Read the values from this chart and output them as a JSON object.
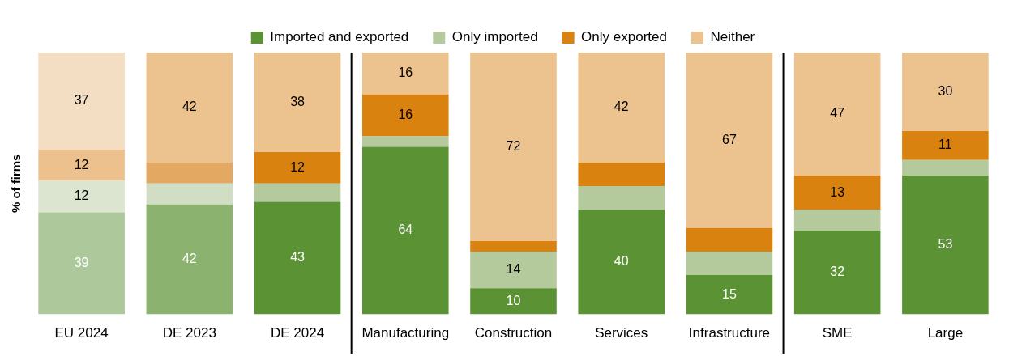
{
  "chart_data": {
    "type": "bar",
    "stacked": true,
    "ylabel": "% of firms",
    "legend": "top",
    "tick_labels": "x",
    "ylim": [
      0,
      100
    ],
    "categories": [
      "EU 2024",
      "DE 2023",
      "DE 2024",
      "Manufacturing",
      "Construction",
      "Services",
      "Infrastructure",
      "SME",
      "Large"
    ],
    "series": [
      {
        "name": "Imported and exported",
        "color": "#5b9233",
        "colors": [
          "#adc89a",
          "#8cb26f",
          "#5b9233",
          "#5b9233",
          "#5b9233",
          "#5b9233",
          "#5b9233",
          "#5b9233",
          "#5b9233"
        ],
        "values": [
          39,
          42,
          43,
          64,
          10,
          40,
          15,
          32,
          53
        ],
        "value_labels": [
          "39",
          "42",
          "43",
          "64",
          "10",
          "40",
          "15",
          "32",
          "53"
        ]
      },
      {
        "name": "Only imported",
        "color": "#b4c99c",
        "colors": [
          "#dbe5d0",
          "#d2dec4",
          "#b4c99c",
          "#b4c99c",
          "#b4c99c",
          "#b4c99c",
          "#b4c99c",
          "#b4c99c",
          "#b4c99c"
        ],
        "values": [
          12,
          8,
          7,
          4,
          14,
          9,
          9,
          8,
          6
        ],
        "value_labels": [
          "12",
          null,
          null,
          null,
          "14",
          null,
          null,
          null,
          null
        ]
      },
      {
        "name": "Only exported",
        "color": "#d9820f",
        "colors": [
          "#ecc18d",
          "#e3a862",
          "#d9820f",
          "#d9820f",
          "#d9820f",
          "#d9820f",
          "#d9820f",
          "#d9820f",
          "#d9820f"
        ],
        "values": [
          12,
          8,
          12,
          16,
          4,
          9,
          9,
          13,
          11
        ],
        "value_labels": [
          "12",
          null,
          "12",
          "16",
          null,
          null,
          null,
          "13",
          "11"
        ]
      },
      {
        "name": "Neither",
        "color": "#ecc28e",
        "colors": [
          "#f3dec4",
          "#ecc28e",
          "#ecc28e",
          "#ecc28e",
          "#ecc28e",
          "#ecc28e",
          "#ecc28e",
          "#ecc28e",
          "#ecc28e"
        ],
        "values": [
          37,
          42,
          38,
          16,
          72,
          42,
          67,
          47,
          30
        ],
        "value_labels": [
          "37",
          "42",
          "38",
          "16",
          "72",
          "42",
          "67",
          "47",
          "30"
        ]
      }
    ]
  }
}
